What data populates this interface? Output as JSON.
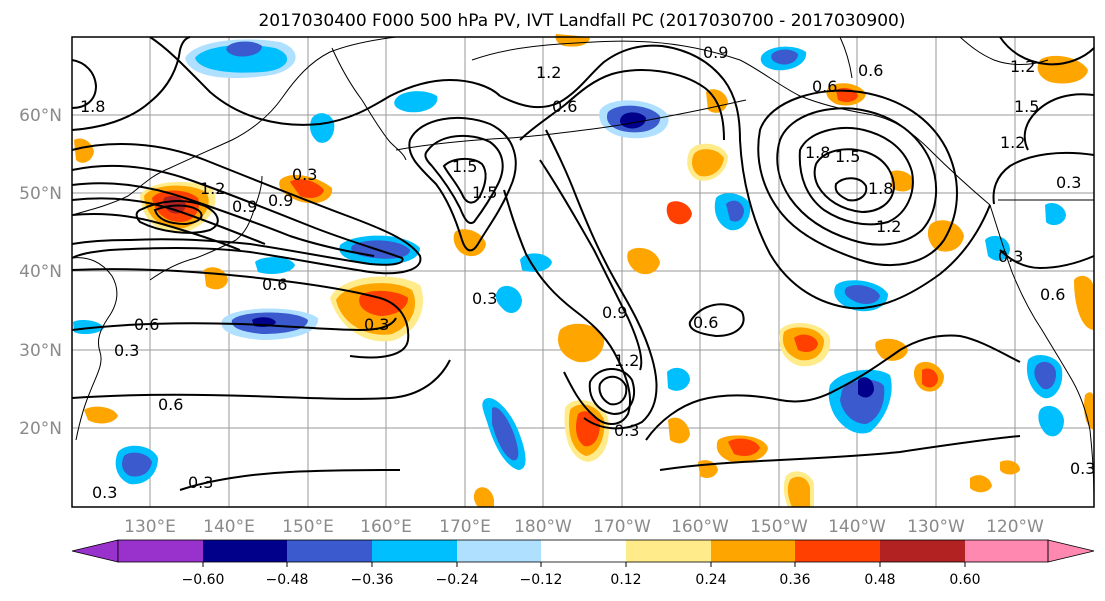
{
  "title": "2017030400 F000 500 hPa PV, IVT Landfall PC (2017030700 - 2017030900)",
  "lat_labels": [
    "60°N",
    "50°N",
    "40°N",
    "30°N",
    "20°N"
  ],
  "lon_labels": [
    "130°E",
    "140°E",
    "150°E",
    "160°E",
    "170°E",
    "180°W",
    "170°W",
    "160°W",
    "150°W",
    "140°W",
    "130°W",
    "120°W"
  ],
  "colorbar": {
    "ticks": [
      "−0.60",
      "−0.48",
      "−0.36",
      "−0.24",
      "−0.12",
      "0.12",
      "0.24",
      "0.36",
      "0.48",
      "0.60"
    ],
    "colors": [
      "#9932cc",
      "#00008b",
      "#3a5acd",
      "#00bfff",
      "#b0e0ff",
      "#ffffff",
      "#ffeb8a",
      "#ffa500",
      "#ff4000",
      "#b22222",
      "#ff88b0"
    ]
  },
  "contour_labels": [
    "1.8",
    "1.2",
    "0.9",
    "0.6",
    "0.3",
    "1.5",
    "0.9",
    "0.6",
    "1.2",
    "1.8",
    "1.5",
    "0.3",
    "0.9",
    "0.6",
    "1.2",
    "0.3",
    "0.6",
    "0.3",
    "0.3",
    "0.6",
    "0.3",
    "1.2",
    "1.5",
    "0.3",
    "0.6",
    "1.8",
    "1.5",
    "1.2",
    "0.3",
    "0.6",
    "0.9",
    "1.2",
    "0.6",
    "0.3",
    "0.3"
  ]
}
